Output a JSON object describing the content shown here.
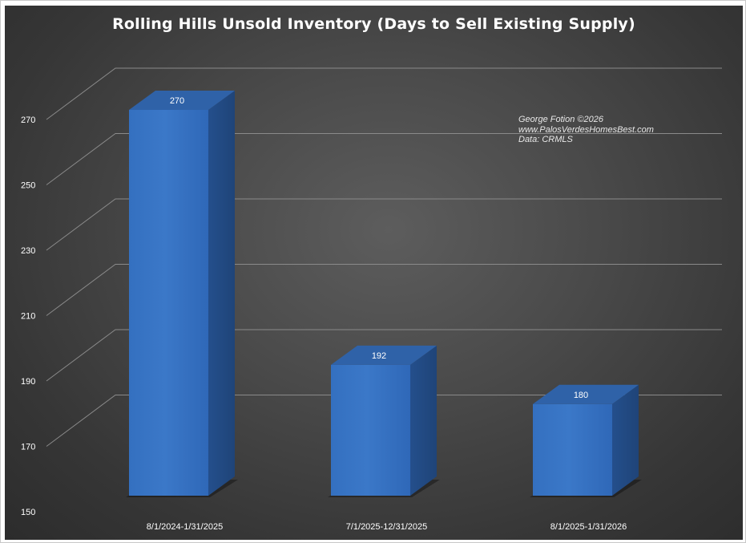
{
  "chart_data": {
    "type": "bar",
    "title": "Rolling Hills Unsold Inventory (Days to Sell Existing Supply)",
    "categories": [
      "8/1/2024-1/31/2025",
      "7/1/2025-12/31/2025",
      "8/1/2025-1/31/2026"
    ],
    "values": [
      270,
      192,
      180
    ],
    "data_labels": [
      "270",
      "192",
      "180"
    ],
    "ylim": [
      150,
      270
    ],
    "yticks": [
      "150",
      "170",
      "190",
      "210",
      "230",
      "250",
      "270"
    ],
    "xlabel": "",
    "ylabel": "",
    "grid": true,
    "legend": "none",
    "style": "3d-column"
  },
  "annotation": {
    "lines": [
      "George Fotion ©2026",
      "www.PalosVerdesHomesBest.com",
      "Data: CRMLS"
    ]
  },
  "colors": {
    "bar_front": "#3b78c8",
    "bar_side": "#244f8c",
    "bar_top": "#2f62a8",
    "background": "#3f3f3f",
    "gridline": "#8a8a8a",
    "text": "#ffffff"
  }
}
